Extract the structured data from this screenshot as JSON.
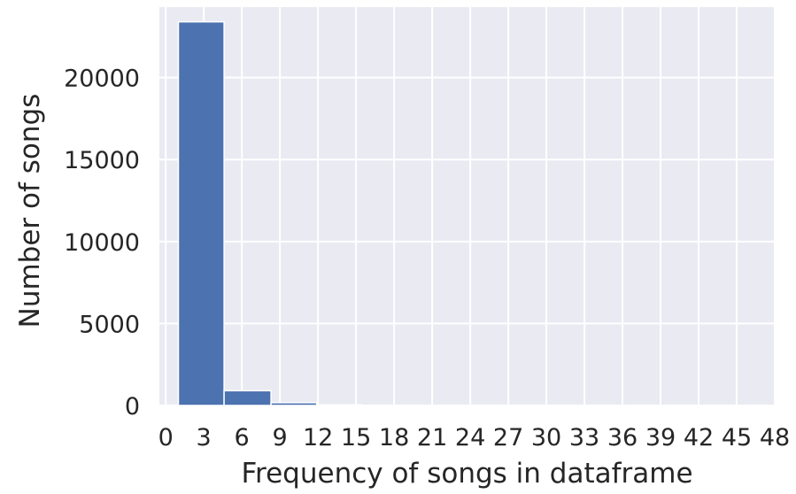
{
  "chart_data": {
    "type": "bar",
    "title": "",
    "xlabel": "Frequency of songs in dataframe",
    "ylabel": "Number of songs",
    "xlim": [
      -0.5,
      48
    ],
    "ylim": [
      0,
      24300
    ],
    "x_ticks": [
      0,
      3,
      6,
      9,
      12,
      15,
      18,
      21,
      24,
      27,
      30,
      33,
      36,
      39,
      42,
      45,
      48
    ],
    "y_ticks": [
      0,
      5000,
      10000,
      15000,
      20000
    ],
    "grid": true,
    "legend": "none",
    "bins": [
      {
        "x0": 1.0,
        "x1": 4.6,
        "value": 23400
      },
      {
        "x0": 4.6,
        "x1": 8.3,
        "value": 900
      },
      {
        "x0": 8.3,
        "x1": 11.9,
        "value": 170
      },
      {
        "x0": 11.9,
        "x1": 15.5,
        "value": 40
      },
      {
        "x0": 15.5,
        "x1": 19.1,
        "value": 15
      },
      {
        "x0": 19.1,
        "x1": 22.8,
        "value": 6
      },
      {
        "x0": 22.8,
        "x1": 26.4,
        "value": 3
      },
      {
        "x0": 26.4,
        "x1": 30.0,
        "value": 2
      },
      {
        "x0": 30.0,
        "x1": 33.6,
        "value": 1
      },
      {
        "x0": 33.6,
        "x1": 37.2,
        "value": 1
      },
      {
        "x0": 37.2,
        "x1": 40.9,
        "value": 0
      },
      {
        "x0": 40.9,
        "x1": 44.5,
        "value": 0
      },
      {
        "x0": 44.5,
        "x1": 48.1,
        "value": 1
      }
    ],
    "colors": {
      "bar": "#4c72b0",
      "plot_background": "#eaeaf2",
      "grid": "#ffffff",
      "text": "#262626"
    }
  }
}
